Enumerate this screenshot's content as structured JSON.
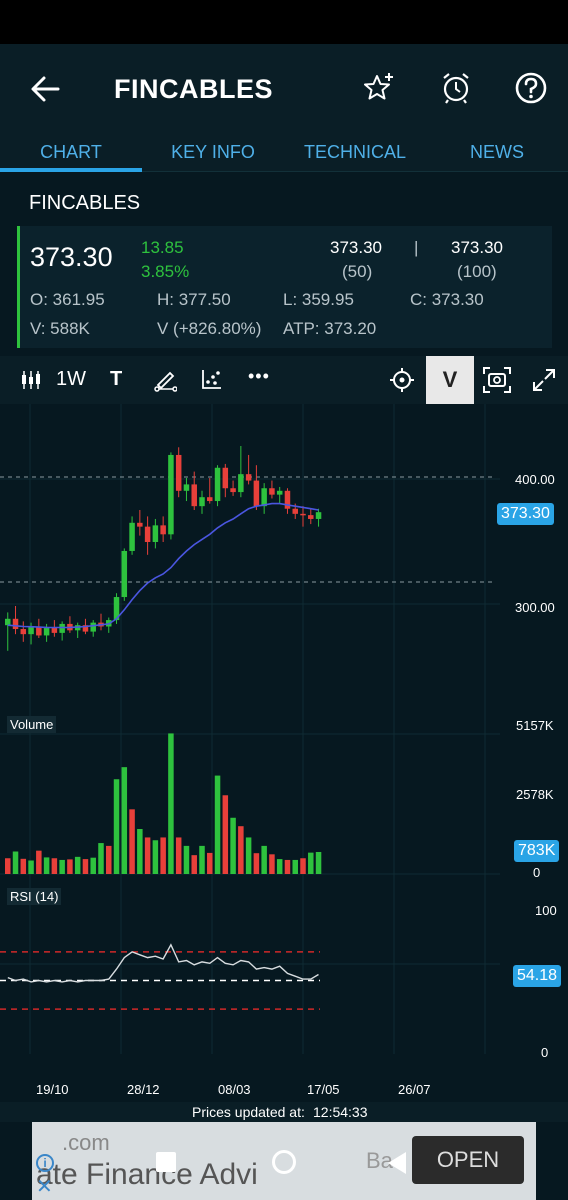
{
  "app": {
    "title": "FINCABLES",
    "icons": [
      "back-arrow-icon",
      "star-plus-icon",
      "alarm-icon",
      "help-icon"
    ]
  },
  "tabs": [
    "CHART",
    "KEY INFO",
    "TECHNICAL",
    "NEWS"
  ],
  "active_tab": "CHART",
  "quote": {
    "name": "FINCABLES",
    "price": "373.30",
    "change": "13.85",
    "change_pct": "3.85%",
    "bid_price": "373.30",
    "bid_qty": "(50)",
    "separator": "|",
    "ask_price": "373.30",
    "ask_qty": "(100)",
    "open": "O: 361.95",
    "high": "H: 377.50",
    "low": "L: 359.95",
    "close": "C: 373.30",
    "volume": "V: 588K",
    "volume_change": "V  (+826.80%)",
    "atp": "ATP: 373.20"
  },
  "toolbar": {
    "interval": "1W",
    "text_tool": "T",
    "more": "•••",
    "v_button": "V"
  },
  "colors": {
    "background": "#061820",
    "accent": "#2aa4e6",
    "up": "#2ec23e",
    "down": "#e8403a",
    "ma_line": "#4a56e0",
    "rsi_band": "#d02828"
  },
  "chart_data": {
    "type": "candlestick",
    "price_axis_labels": [
      "400.00",
      "300.00"
    ],
    "last_price_label": "373.30",
    "x_tick_labels": [
      "19/10",
      "28/12",
      "08/03",
      "17/05",
      "26/07"
    ],
    "candles": [
      {
        "o": 285,
        "h": 295,
        "l": 265,
        "c": 290
      },
      {
        "o": 290,
        "h": 300,
        "l": 278,
        "c": 282
      },
      {
        "o": 282,
        "h": 288,
        "l": 272,
        "c": 278
      },
      {
        "o": 278,
        "h": 287,
        "l": 270,
        "c": 284
      },
      {
        "o": 284,
        "h": 290,
        "l": 275,
        "c": 277
      },
      {
        "o": 277,
        "h": 286,
        "l": 272,
        "c": 283
      },
      {
        "o": 283,
        "h": 289,
        "l": 276,
        "c": 279
      },
      {
        "o": 279,
        "h": 288,
        "l": 273,
        "c": 286
      },
      {
        "o": 286,
        "h": 292,
        "l": 279,
        "c": 281
      },
      {
        "o": 281,
        "h": 287,
        "l": 275,
        "c": 285
      },
      {
        "o": 285,
        "h": 290,
        "l": 278,
        "c": 280
      },
      {
        "o": 280,
        "h": 289,
        "l": 276,
        "c": 287
      },
      {
        "o": 287,
        "h": 294,
        "l": 281,
        "c": 284
      },
      {
        "o": 284,
        "h": 291,
        "l": 279,
        "c": 289
      },
      {
        "o": 289,
        "h": 310,
        "l": 286,
        "c": 307
      },
      {
        "o": 307,
        "h": 345,
        "l": 304,
        "c": 343
      },
      {
        "o": 343,
        "h": 370,
        "l": 340,
        "c": 365
      },
      {
        "o": 365,
        "h": 375,
        "l": 355,
        "c": 362
      },
      {
        "o": 362,
        "h": 370,
        "l": 340,
        "c": 350
      },
      {
        "o": 350,
        "h": 368,
        "l": 345,
        "c": 363
      },
      {
        "o": 363,
        "h": 370,
        "l": 350,
        "c": 356
      },
      {
        "o": 356,
        "h": 420,
        "l": 352,
        "c": 418
      },
      {
        "o": 418,
        "h": 424,
        "l": 385,
        "c": 390
      },
      {
        "o": 390,
        "h": 400,
        "l": 382,
        "c": 395
      },
      {
        "o": 395,
        "h": 405,
        "l": 375,
        "c": 378
      },
      {
        "o": 378,
        "h": 390,
        "l": 372,
        "c": 385
      },
      {
        "o": 385,
        "h": 400,
        "l": 380,
        "c": 382
      },
      {
        "o": 382,
        "h": 410,
        "l": 378,
        "c": 408
      },
      {
        "o": 408,
        "h": 411,
        "l": 385,
        "c": 392
      },
      {
        "o": 392,
        "h": 398,
        "l": 386,
        "c": 389
      },
      {
        "o": 389,
        "h": 425,
        "l": 385,
        "c": 403
      },
      {
        "o": 403,
        "h": 418,
        "l": 395,
        "c": 398
      },
      {
        "o": 398,
        "h": 410,
        "l": 375,
        "c": 378
      },
      {
        "o": 378,
        "h": 396,
        "l": 372,
        "c": 392
      },
      {
        "o": 392,
        "h": 398,
        "l": 384,
        "c": 387
      },
      {
        "o": 387,
        "h": 393,
        "l": 380,
        "c": 390
      },
      {
        "o": 390,
        "h": 392,
        "l": 372,
        "c": 376
      },
      {
        "o": 376,
        "h": 380,
        "l": 368,
        "c": 372
      },
      {
        "o": 372,
        "h": 378,
        "l": 362,
        "c": 371
      },
      {
        "o": 371,
        "h": 376,
        "l": 364,
        "c": 368
      },
      {
        "o": 368,
        "h": 376,
        "l": 362,
        "c": 373.3
      }
    ],
    "ma": [
      285,
      284.5,
      284,
      283.8,
      283.5,
      283.3,
      283.2,
      283.2,
      283.3,
      283.5,
      284,
      284.6,
      285.3,
      286,
      290,
      297,
      305,
      312,
      318,
      322,
      325,
      330,
      337,
      343,
      348,
      352,
      356,
      361,
      365,
      368,
      372,
      376,
      378,
      379,
      380,
      380,
      379,
      378,
      377,
      376,
      375
    ]
  },
  "volume_panel": {
    "label": "Volume",
    "axis_labels": [
      "5157K",
      "2578K",
      "0"
    ],
    "last_label": "783K",
    "max": 5157,
    "bars": [
      {
        "v": 560,
        "up": false
      },
      {
        "v": 800,
        "up": true
      },
      {
        "v": 540,
        "up": false
      },
      {
        "v": 480,
        "up": true
      },
      {
        "v": 830,
        "up": false
      },
      {
        "v": 590,
        "up": true
      },
      {
        "v": 560,
        "up": false
      },
      {
        "v": 500,
        "up": true
      },
      {
        "v": 520,
        "up": false
      },
      {
        "v": 610,
        "up": true
      },
      {
        "v": 530,
        "up": false
      },
      {
        "v": 580,
        "up": true
      },
      {
        "v": 1100,
        "up": true
      },
      {
        "v": 1000,
        "up": false
      },
      {
        "v": 3370,
        "up": true
      },
      {
        "v": 3800,
        "up": true
      },
      {
        "v": 2300,
        "up": false
      },
      {
        "v": 1600,
        "up": true
      },
      {
        "v": 1300,
        "up": false
      },
      {
        "v": 1200,
        "up": true
      },
      {
        "v": 1300,
        "up": false
      },
      {
        "v": 5000,
        "up": true
      },
      {
        "v": 1300,
        "up": false
      },
      {
        "v": 1000,
        "up": true
      },
      {
        "v": 670,
        "up": false
      },
      {
        "v": 1000,
        "up": true
      },
      {
        "v": 750,
        "up": false
      },
      {
        "v": 3500,
        "up": true
      },
      {
        "v": 2800,
        "up": false
      },
      {
        "v": 2000,
        "up": true
      },
      {
        "v": 1700,
        "up": false
      },
      {
        "v": 1300,
        "up": true
      },
      {
        "v": 740,
        "up": false
      },
      {
        "v": 1000,
        "up": true
      },
      {
        "v": 700,
        "up": false
      },
      {
        "v": 530,
        "up": true
      },
      {
        "v": 500,
        "up": false
      },
      {
        "v": 500,
        "up": true
      },
      {
        "v": 560,
        "up": false
      },
      {
        "v": 760,
        "up": true
      },
      {
        "v": 783,
        "up": true
      }
    ]
  },
  "rsi_panel": {
    "label": "RSI (14)",
    "axis_labels": [
      "100",
      "0"
    ],
    "last_label": "54.18",
    "upper": 70,
    "lower": 30,
    "mid": 50,
    "values": [
      52,
      50,
      51,
      49,
      50,
      49,
      50,
      49,
      50,
      49,
      50,
      50,
      50,
      51,
      58,
      66,
      70,
      68,
      66,
      67,
      65,
      75,
      63,
      64,
      61,
      63,
      62,
      66,
      62,
      61,
      64,
      63,
      58,
      59,
      58,
      60,
      55,
      53,
      51,
      51,
      54.18
    ]
  },
  "footer": {
    "prices_updated_label": "Prices updated at:",
    "time": "12:54:33"
  },
  "ad": {
    "domain": ".com",
    "text": "ate Finance Advi",
    "bank": "Ba",
    "open": "OPEN"
  }
}
